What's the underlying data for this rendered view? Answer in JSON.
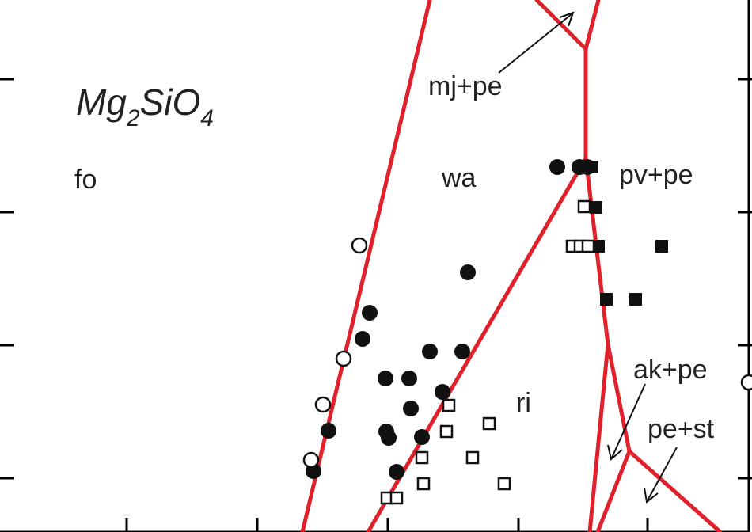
{
  "title": {
    "base": "Mg",
    "sub1": "2",
    "mid": "SiO",
    "sub2": "4"
  },
  "phase_labels": {
    "fo": "fo",
    "wa": "wa",
    "ri": "ri",
    "pv_pe": "pv+pe",
    "mj_pe": "mj+pe",
    "ak_pe": "ak+pe",
    "pe_st": "pe+st"
  },
  "colors": {
    "boundary": "#e0202a",
    "symbol": "#111111",
    "frame": "#000000"
  },
  "symbol_legend_note": "filled circle, open circle, filled square, open square markers"
}
